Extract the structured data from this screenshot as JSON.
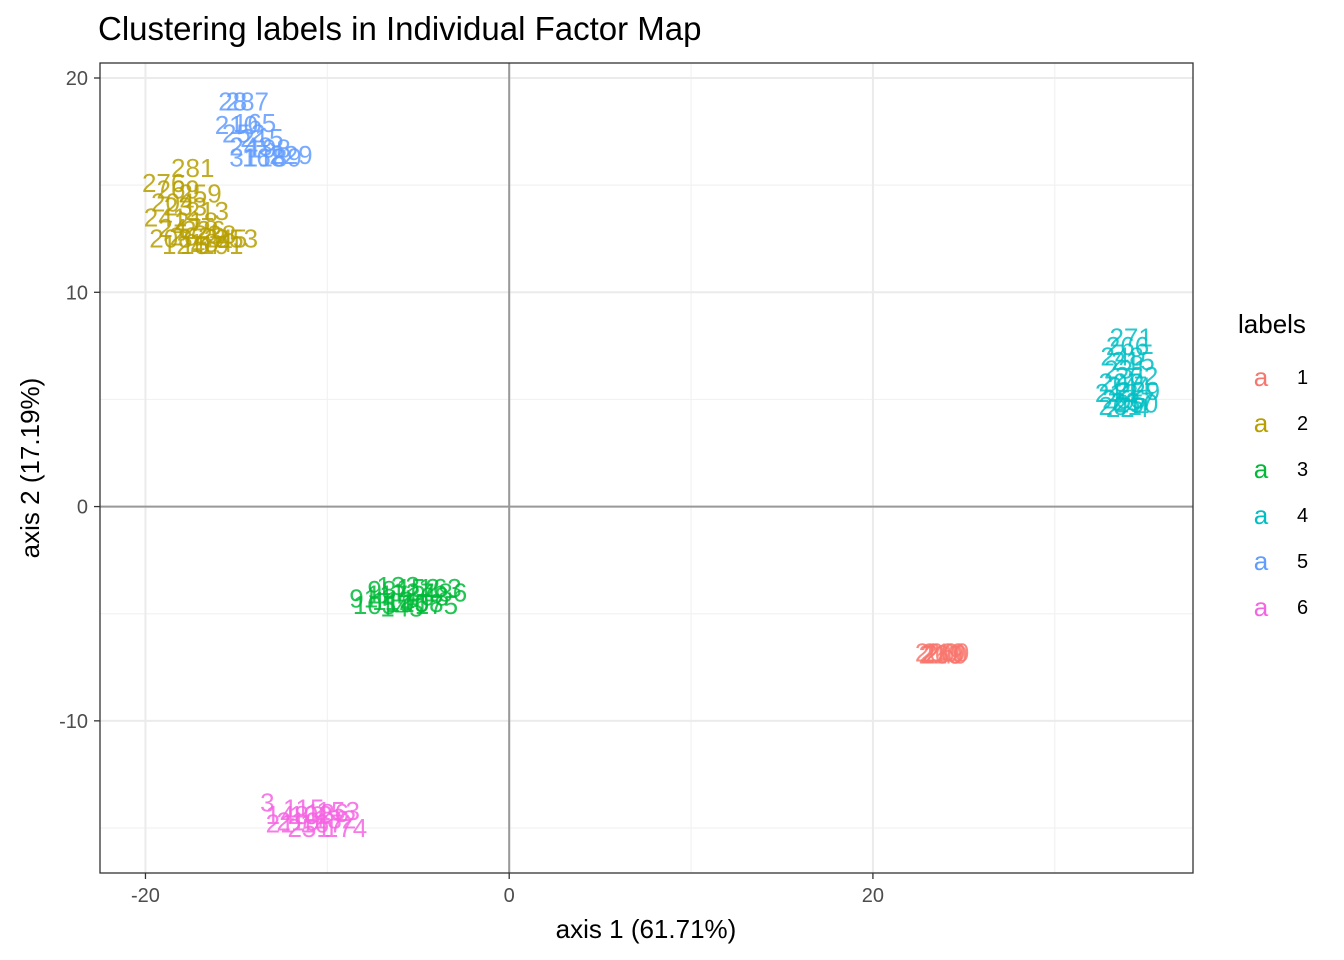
{
  "chart_data": {
    "type": "scatter",
    "title": "Clustering labels in Individual Factor Map",
    "xlabel": "axis 1 (61.71%)",
    "ylabel": "axis 2 (17.19%)",
    "xlim": [
      -22.5,
      37.6
    ],
    "ylim": [
      -17.1,
      20.7
    ],
    "x_ticks": [
      -20,
      0,
      20
    ],
    "y_ticks": [
      -10,
      0,
      10,
      20
    ],
    "grid": true,
    "legend": {
      "title": "labels",
      "key_glyph": "a",
      "placement": "right"
    },
    "series": [
      {
        "name": "1",
        "color": "#F8766D",
        "points": [
          {
            "x": 23.5,
            "y": -6.8,
            "label": "200"
          },
          {
            "x": 23.7,
            "y": -6.9,
            "label": "210"
          },
          {
            "x": 23.9,
            "y": -6.8,
            "label": "219"
          },
          {
            "x": 24.0,
            "y": -6.9,
            "label": "240"
          },
          {
            "x": 24.1,
            "y": -6.8,
            "label": "260"
          },
          {
            "x": 23.8,
            "y": -6.9,
            "label": "269"
          }
        ]
      },
      {
        "name": "2",
        "color": "#B79F00",
        "points": [
          {
            "x": -17.4,
            "y": 15.8,
            "label": "281"
          },
          {
            "x": -19.0,
            "y": 15.1,
            "label": "276"
          },
          {
            "x": -18.2,
            "y": 14.8,
            "label": "269"
          },
          {
            "x": -17.0,
            "y": 14.6,
            "label": "259"
          },
          {
            "x": -18.5,
            "y": 14.2,
            "label": "204"
          },
          {
            "x": -17.8,
            "y": 14.0,
            "label": "233"
          },
          {
            "x": -16.6,
            "y": 13.8,
            "label": "213"
          },
          {
            "x": -18.9,
            "y": 13.5,
            "label": "241"
          },
          {
            "x": -17.2,
            "y": 13.3,
            "label": "218"
          },
          {
            "x": -18.1,
            "y": 13.0,
            "label": "247"
          },
          {
            "x": -16.8,
            "y": 12.9,
            "label": "226"
          },
          {
            "x": -17.5,
            "y": 12.6,
            "label": "262"
          },
          {
            "x": -16.2,
            "y": 12.7,
            "label": "238"
          },
          {
            "x": -15.6,
            "y": 12.5,
            "label": "245"
          },
          {
            "x": -15.0,
            "y": 12.5,
            "label": "253"
          },
          {
            "x": -18.6,
            "y": 12.5,
            "label": "208"
          },
          {
            "x": -17.9,
            "y": 12.2,
            "label": "124"
          },
          {
            "x": -16.9,
            "y": 12.2,
            "label": "157"
          },
          {
            "x": -16.4,
            "y": 12.3,
            "label": "184"
          },
          {
            "x": -15.8,
            "y": 12.2,
            "label": "191"
          }
        ]
      },
      {
        "name": "3",
        "color": "#00BA38",
        "points": [
          {
            "x": -8.0,
            "y": -4.3,
            "label": "91"
          },
          {
            "x": -7.4,
            "y": -4.6,
            "label": "105"
          },
          {
            "x": -6.7,
            "y": -4.1,
            "label": "117"
          },
          {
            "x": -6.1,
            "y": -3.7,
            "label": "133"
          },
          {
            "x": -5.6,
            "y": -4.5,
            "label": "140"
          },
          {
            "x": -5.0,
            "y": -3.8,
            "label": "152"
          },
          {
            "x": -4.5,
            "y": -4.2,
            "label": "168"
          },
          {
            "x": -4.0,
            "y": -4.6,
            "label": "175"
          },
          {
            "x": -3.5,
            "y": -4.0,
            "label": "186"
          },
          {
            "x": -6.4,
            "y": -4.4,
            "label": "112"
          },
          {
            "x": -5.3,
            "y": -4.0,
            "label": "127"
          },
          {
            "x": -4.8,
            "y": -4.5,
            "label": "158"
          },
          {
            "x": -3.8,
            "y": -3.8,
            "label": "163"
          },
          {
            "x": -7.0,
            "y": -3.9,
            "label": "98"
          },
          {
            "x": -5.9,
            "y": -4.7,
            "label": "145"
          }
        ]
      },
      {
        "name": "4",
        "color": "#00BFC4",
        "points": [
          {
            "x": 34.2,
            "y": 7.9,
            "label": "271"
          },
          {
            "x": 34.0,
            "y": 7.5,
            "label": "266"
          },
          {
            "x": 33.7,
            "y": 7.0,
            "label": "248"
          },
          {
            "x": 34.3,
            "y": 6.8,
            "label": "215"
          },
          {
            "x": 33.9,
            "y": 6.4,
            "label": "231"
          },
          {
            "x": 34.5,
            "y": 6.1,
            "label": "262"
          },
          {
            "x": 33.6,
            "y": 5.8,
            "label": "207"
          },
          {
            "x": 34.1,
            "y": 5.6,
            "label": "244"
          },
          {
            "x": 34.6,
            "y": 5.4,
            "label": "229"
          },
          {
            "x": 33.4,
            "y": 5.3,
            "label": "212"
          },
          {
            "x": 33.8,
            "y": 5.0,
            "label": "255"
          },
          {
            "x": 34.3,
            "y": 4.9,
            "label": "237"
          },
          {
            "x": 33.6,
            "y": 4.7,
            "label": "201"
          },
          {
            "x": 34.0,
            "y": 4.6,
            "label": "224"
          },
          {
            "x": 34.5,
            "y": 4.8,
            "label": "250"
          }
        ]
      },
      {
        "name": "5",
        "color": "#619CFF",
        "points": [
          {
            "x": -15.2,
            "y": 18.9,
            "label": "28"
          },
          {
            "x": -14.4,
            "y": 18.9,
            "label": "287"
          },
          {
            "x": -15.0,
            "y": 17.8,
            "label": "210"
          },
          {
            "x": -14.0,
            "y": 17.9,
            "label": "165"
          },
          {
            "x": -14.6,
            "y": 17.4,
            "label": "252"
          },
          {
            "x": -13.6,
            "y": 17.2,
            "label": "215"
          },
          {
            "x": -14.2,
            "y": 16.8,
            "label": "243"
          },
          {
            "x": -13.2,
            "y": 16.7,
            "label": "198"
          },
          {
            "x": -14.6,
            "y": 16.3,
            "label": "31"
          },
          {
            "x": -13.5,
            "y": 16.3,
            "label": "168"
          },
          {
            "x": -12.6,
            "y": 16.3,
            "label": "189"
          },
          {
            "x": -12.0,
            "y": 16.4,
            "label": "229"
          }
        ]
      },
      {
        "name": "6",
        "color": "#F564E3",
        "points": [
          {
            "x": -13.3,
            "y": -13.8,
            "label": "3"
          },
          {
            "x": -12.2,
            "y": -14.4,
            "label": "148"
          },
          {
            "x": -11.6,
            "y": -14.7,
            "label": "219"
          },
          {
            "x": -10.9,
            "y": -14.4,
            "label": "102"
          },
          {
            "x": -10.3,
            "y": -14.8,
            "label": "167"
          },
          {
            "x": -9.6,
            "y": -14.6,
            "label": "132"
          },
          {
            "x": -9.0,
            "y": -15.0,
            "label": "174"
          },
          {
            "x": -11.0,
            "y": -15.0,
            "label": "251"
          },
          {
            "x": -10.0,
            "y": -14.3,
            "label": "186"
          },
          {
            "x": -12.6,
            "y": -14.8,
            "label": "21"
          },
          {
            "x": -11.3,
            "y": -14.1,
            "label": "115"
          },
          {
            "x": -9.4,
            "y": -14.2,
            "label": "153"
          }
        ]
      }
    ]
  }
}
